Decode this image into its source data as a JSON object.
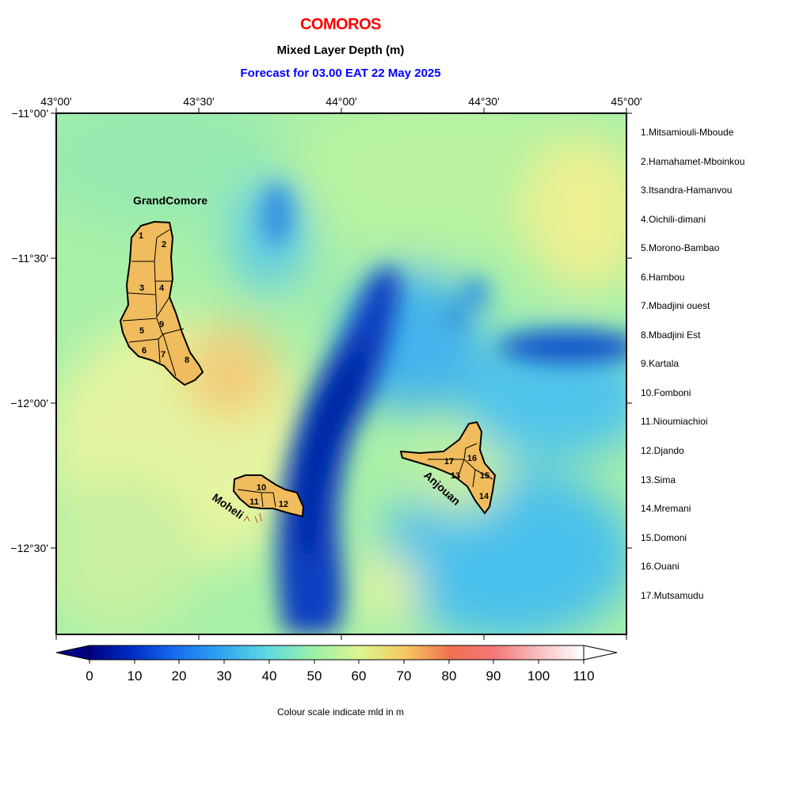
{
  "title": "COMOROS",
  "subtitle": "Mixed Layer Depth (m)",
  "forecast": "Forecast for  03.00 EAT 22 May 2025",
  "axes": {
    "lon_ticks": [
      "43°00'",
      "43°30'",
      "44°00'",
      "44°30'",
      "45°00'"
    ],
    "lat_ticks": [
      "−11°00'",
      "−11°30'",
      "−12°00'",
      "−12°30'"
    ]
  },
  "island_labels": {
    "grande_comore": "GrandComore",
    "moheli": "Moheli",
    "anjouan": "Anjouan"
  },
  "region_numbers": [
    "1",
    "2",
    "3",
    "4",
    "5",
    "6",
    "7",
    "8",
    "9",
    "10",
    "11",
    "12",
    "13",
    "14",
    "15",
    "16",
    "17"
  ],
  "regions": [
    "1.Mitsamiouli-Mboude",
    "2.Hamahamet-Mboinkou",
    "3.Itsandra-Hamanvou",
    "4.Oichili-dimani",
    "5.Morono-Bambao",
    "6.Hambou",
    "7.Mbadjini ouest",
    "8.Mbadjini Est",
    "9.Kartala",
    "10.Fomboni",
    "11.Nioumiachioi",
    "12.Djando",
    "13.Sima",
    "14.Mremani",
    "15.Domoni",
    "16.Ouani",
    "17.Mutsamudu"
  ],
  "colorbar": {
    "ticks": [
      "0",
      "10",
      "20",
      "30",
      "40",
      "50",
      "60",
      "70",
      "80",
      "90",
      "100",
      "110"
    ],
    "caption": "Colour scale indicate mld in m",
    "colors": [
      "#000080",
      "#0050dd",
      "#2fa8f0",
      "#5fd8e0",
      "#8ff0a0",
      "#e8f58c",
      "#f5c060",
      "#f06050",
      "#f8a8a8",
      "#ffffff"
    ]
  },
  "colors": {
    "land": "#f0bc5e",
    "title": "#ff0000",
    "forecast": "#0000ff"
  }
}
